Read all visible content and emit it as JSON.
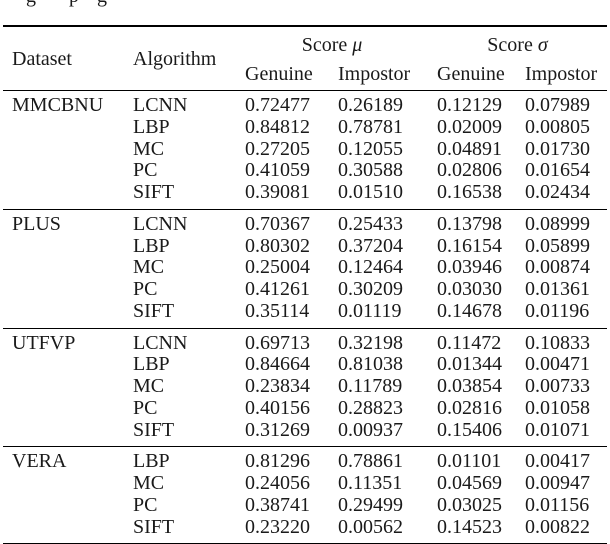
{
  "page": {
    "background": "#ffffff",
    "clipped_text_fragment": {
      "description": "bottom descenders of a cut-off text line above the table",
      "letters": [
        "g",
        "p",
        "g"
      ]
    }
  },
  "colors": {
    "text": "#1a1a1a",
    "rule": "#000000",
    "background": "#ffffff"
  },
  "table": {
    "header": {
      "dataset": "Dataset",
      "algorithm": "Algorithm",
      "score_label": "Score",
      "mu": "μ",
      "sigma": "σ",
      "genuine": "Genuine",
      "impostor": "Impostor"
    },
    "groups": [
      {
        "dataset": "MMCBNU",
        "rows": [
          {
            "algorithm": "LCNN",
            "mu_genuine": "0.72477",
            "mu_impostor": "0.26189",
            "sigma_genuine": "0.12129",
            "sigma_impostor": "0.07989"
          },
          {
            "algorithm": "LBP",
            "mu_genuine": "0.84812",
            "mu_impostor": "0.78781",
            "sigma_genuine": "0.02009",
            "sigma_impostor": "0.00805"
          },
          {
            "algorithm": "MC",
            "mu_genuine": "0.27205",
            "mu_impostor": "0.12055",
            "sigma_genuine": "0.04891",
            "sigma_impostor": "0.01730"
          },
          {
            "algorithm": "PC",
            "mu_genuine": "0.41059",
            "mu_impostor": "0.30588",
            "sigma_genuine": "0.02806",
            "sigma_impostor": "0.01654"
          },
          {
            "algorithm": "SIFT",
            "mu_genuine": "0.39081",
            "mu_impostor": "0.01510",
            "sigma_genuine": "0.16538",
            "sigma_impostor": "0.02434"
          }
        ]
      },
      {
        "dataset": "PLUS",
        "rows": [
          {
            "algorithm": "LCNN",
            "mu_genuine": "0.70367",
            "mu_impostor": "0.25433",
            "sigma_genuine": "0.13798",
            "sigma_impostor": "0.08999"
          },
          {
            "algorithm": "LBP",
            "mu_genuine": "0.80302",
            "mu_impostor": "0.37204",
            "sigma_genuine": "0.16154",
            "sigma_impostor": "0.05899"
          },
          {
            "algorithm": "MC",
            "mu_genuine": "0.25004",
            "mu_impostor": "0.12464",
            "sigma_genuine": "0.03946",
            "sigma_impostor": "0.00874"
          },
          {
            "algorithm": "PC",
            "mu_genuine": "0.41261",
            "mu_impostor": "0.30209",
            "sigma_genuine": "0.03030",
            "sigma_impostor": "0.01361"
          },
          {
            "algorithm": "SIFT",
            "mu_genuine": "0.35114",
            "mu_impostor": "0.01119",
            "sigma_genuine": "0.14678",
            "sigma_impostor": "0.01196"
          }
        ]
      },
      {
        "dataset": "UTFVP",
        "rows": [
          {
            "algorithm": "LCNN",
            "mu_genuine": "0.69713",
            "mu_impostor": "0.32198",
            "sigma_genuine": "0.11472",
            "sigma_impostor": "0.10833"
          },
          {
            "algorithm": "LBP",
            "mu_genuine": "0.84664",
            "mu_impostor": "0.81038",
            "sigma_genuine": "0.01344",
            "sigma_impostor": "0.00471"
          },
          {
            "algorithm": "MC",
            "mu_genuine": "0.23834",
            "mu_impostor": "0.11789",
            "sigma_genuine": "0.03854",
            "sigma_impostor": "0.00733"
          },
          {
            "algorithm": "PC",
            "mu_genuine": "0.40156",
            "mu_impostor": "0.28823",
            "sigma_genuine": "0.02816",
            "sigma_impostor": "0.01058"
          },
          {
            "algorithm": "SIFT",
            "mu_genuine": "0.31269",
            "mu_impostor": "0.00937",
            "sigma_genuine": "0.15406",
            "sigma_impostor": "0.01071"
          }
        ]
      },
      {
        "dataset": "VERA",
        "rows": [
          {
            "algorithm": "LBP",
            "mu_genuine": "0.81296",
            "mu_impostor": "0.78861",
            "sigma_genuine": "0.01101",
            "sigma_impostor": "0.00417"
          },
          {
            "algorithm": "MC",
            "mu_genuine": "0.24056",
            "mu_impostor": "0.11351",
            "sigma_genuine": "0.04569",
            "sigma_impostor": "0.00947"
          },
          {
            "algorithm": "PC",
            "mu_genuine": "0.38741",
            "mu_impostor": "0.29499",
            "sigma_genuine": "0.03025",
            "sigma_impostor": "0.01156"
          },
          {
            "algorithm": "SIFT",
            "mu_genuine": "0.23220",
            "mu_impostor": "0.00562",
            "sigma_genuine": "0.14523",
            "sigma_impostor": "0.00822"
          }
        ]
      }
    ]
  }
}
